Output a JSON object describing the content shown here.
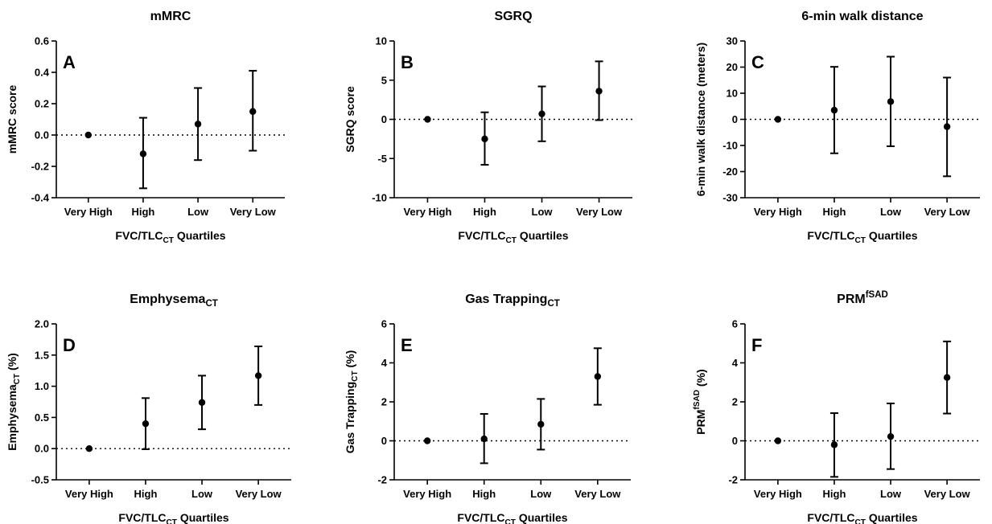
{
  "chart_data": [
    {
      "type": "scatter",
      "title": "mMRC",
      "title_sub": "",
      "title_sup": "",
      "panel": "A",
      "ylabel": "mMRC score",
      "ylabel_sub": "",
      "ylabel_sup": "",
      "xlabel": "FVC/TLC",
      "xlabel_sub": "CT",
      "xlabel_suffix": " Quartiles",
      "categories": [
        "Very High",
        "High",
        "Low",
        "Very Low"
      ],
      "ylim": [
        -0.4,
        0.6
      ],
      "yticks": [
        -0.4,
        -0.2,
        0.0,
        0.2,
        0.4,
        0.6
      ],
      "ytick_labels": [
        "-0.4",
        "-0.2",
        "0.0",
        "0.2",
        "0.4",
        "0.6"
      ],
      "reference_line": 0,
      "values": [
        0,
        -0.12,
        0.07,
        0.15
      ],
      "lower": [
        null,
        -0.34,
        -0.16,
        -0.1
      ],
      "upper": [
        null,
        0.11,
        0.3,
        0.41
      ]
    },
    {
      "type": "scatter",
      "title": "SGRQ",
      "title_sub": "",
      "title_sup": "",
      "panel": "B",
      "ylabel": "SGRQ score",
      "ylabel_sub": "",
      "ylabel_sup": "",
      "xlabel": "FVC/TLC",
      "xlabel_sub": "CT",
      "xlabel_suffix": " Quartiles",
      "categories": [
        "Very High",
        "High",
        "Low",
        "Very Low"
      ],
      "ylim": [
        -10,
        10
      ],
      "yticks": [
        -10,
        -5,
        0,
        5,
        10
      ],
      "ytick_labels": [
        "-10",
        "-5",
        "0",
        "5",
        "10"
      ],
      "reference_line": 0,
      "values": [
        0,
        -2.5,
        0.7,
        3.6
      ],
      "lower": [
        null,
        -5.8,
        -2.8,
        -0.1
      ],
      "upper": [
        null,
        0.9,
        4.2,
        7.4
      ]
    },
    {
      "type": "scatter",
      "title": "6-min walk distance",
      "title_sub": "",
      "title_sup": "",
      "panel": "C",
      "ylabel": "6-min walk distance (meters)",
      "ylabel_sub": "",
      "ylabel_sup": "",
      "xlabel": "FVC/TLC",
      "xlabel_sub": "CT",
      "xlabel_suffix": " Quartiles",
      "categories": [
        "Very High",
        "High",
        "Low",
        "Very Low"
      ],
      "ylim": [
        -30,
        30
      ],
      "yticks": [
        -30,
        -20,
        -10,
        0,
        10,
        20,
        30
      ],
      "ytick_labels": [
        "-30",
        "-20",
        "-10",
        "0",
        "10",
        "20",
        "30"
      ],
      "reference_line": 0,
      "values": [
        0,
        3.5,
        6.8,
        -2.8
      ],
      "lower": [
        null,
        -13,
        -10.3,
        -21.8
      ],
      "upper": [
        null,
        20.1,
        24.0,
        16.0
      ]
    },
    {
      "type": "scatter",
      "title": "Emphysema",
      "title_sub": "CT",
      "title_sup": "",
      "panel": "D",
      "ylabel": "Emphysema",
      "ylabel_sub": "CT",
      "ylabel_sup": "",
      "ylabel_suffix": " (%)",
      "xlabel": "FVC/TLC",
      "xlabel_sub": "CT",
      "xlabel_suffix": " Quartiles",
      "categories": [
        "Very High",
        "High",
        "Low",
        "Very Low"
      ],
      "ylim": [
        -0.5,
        2.0
      ],
      "yticks": [
        -0.5,
        0.0,
        0.5,
        1.0,
        1.5,
        2.0
      ],
      "ytick_labels": [
        "-0.5",
        "0.0",
        "0.5",
        "1.0",
        "1.5",
        "2.0"
      ],
      "reference_line": 0,
      "values": [
        0,
        0.4,
        0.74,
        1.17
      ],
      "lower": [
        null,
        -0.01,
        0.31,
        0.7
      ],
      "upper": [
        null,
        0.81,
        1.17,
        1.64
      ]
    },
    {
      "type": "scatter",
      "title": "Gas Trapping",
      "title_sub": "CT",
      "title_sup": "",
      "panel": "E",
      "ylabel": "Gas Trapping",
      "ylabel_sub": "CT",
      "ylabel_sup": "",
      "ylabel_suffix": " (%)",
      "xlabel": "FVC/TLC",
      "xlabel_sub": "CT",
      "xlabel_suffix": " Quartiles",
      "categories": [
        "Very High",
        "High",
        "Low",
        "Very Low"
      ],
      "ylim": [
        -2,
        6
      ],
      "yticks": [
        -2,
        0,
        2,
        4,
        6
      ],
      "ytick_labels": [
        "-2",
        "0",
        "2",
        "4",
        "6"
      ],
      "reference_line": 0,
      "values": [
        0,
        0.1,
        0.85,
        3.3
      ],
      "lower": [
        null,
        -1.15,
        -0.45,
        1.85
      ],
      "upper": [
        null,
        1.38,
        2.15,
        4.75
      ]
    },
    {
      "type": "scatter",
      "title": "PRM",
      "title_sub": "",
      "title_sup": "fSAD",
      "panel": "F",
      "ylabel": "PRM",
      "ylabel_sub": "",
      "ylabel_sup": "fSAD",
      "ylabel_suffix": " (%)",
      "xlabel": "FVC/TLC",
      "xlabel_sub": "CT",
      "xlabel_suffix": " Quartiles",
      "categories": [
        "Very High",
        "High",
        "Low",
        "Very Low"
      ],
      "ylim": [
        -2,
        6
      ],
      "yticks": [
        -2,
        0,
        2,
        4,
        6
      ],
      "ytick_labels": [
        "-2",
        "0",
        "2",
        "4",
        "6"
      ],
      "reference_line": 0,
      "values": [
        0,
        -0.2,
        0.22,
        3.25
      ],
      "lower": [
        null,
        -1.85,
        -1.45,
        1.4
      ],
      "upper": [
        null,
        1.42,
        1.92,
        5.1
      ]
    }
  ]
}
